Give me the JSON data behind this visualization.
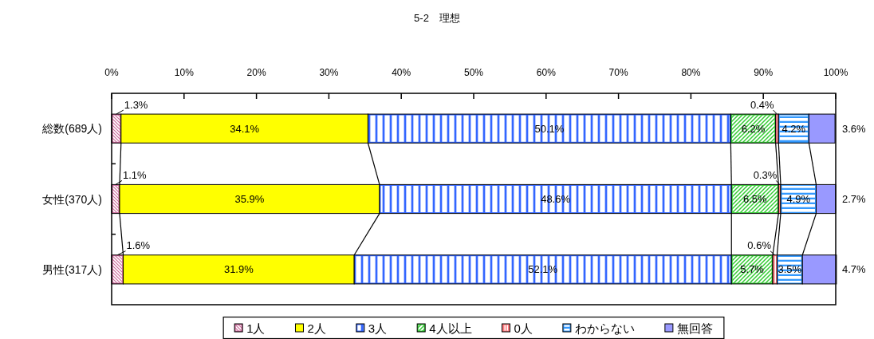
{
  "chart_data": {
    "type": "bar",
    "orientation": "horizontal",
    "stacked": true,
    "title": "5-2　理想",
    "categories": [
      "総数(689人)",
      "女性(370人)",
      "男性(317人)"
    ],
    "xlim": [
      0,
      100
    ],
    "xticks": [
      {
        "value": 0,
        "label": "0%"
      },
      {
        "value": 10,
        "label": "10%"
      },
      {
        "value": 20,
        "label": "20%"
      },
      {
        "value": 30,
        "label": "30%"
      },
      {
        "value": 40,
        "label": "40%"
      },
      {
        "value": 50,
        "label": "50%"
      },
      {
        "value": 60,
        "label": "60%"
      },
      {
        "value": 70,
        "label": "70%"
      },
      {
        "value": 80,
        "label": "80%"
      },
      {
        "value": 90,
        "label": "90%"
      },
      {
        "value": 100,
        "label": "100%"
      }
    ],
    "legend": "bottom",
    "series": [
      {
        "name": "1人",
        "color": "#cc6699",
        "values": [
          1.3,
          1.1,
          1.6
        ],
        "value_labels": [
          "1.3%",
          "1.1%",
          "1.6%"
        ]
      },
      {
        "name": "2人",
        "color": "#ffff00",
        "values": [
          34.1,
          35.9,
          31.9
        ],
        "value_labels": [
          "34.1%",
          "35.9%",
          "31.9%"
        ]
      },
      {
        "name": "3人",
        "color": "#3366ff",
        "values": [
          50.1,
          48.6,
          52.1
        ],
        "value_labels": [
          "50.1%",
          "48.6%",
          "52.1%"
        ]
      },
      {
        "name": "4人以上",
        "color": "#33cc33",
        "values": [
          6.2,
          6.5,
          5.7
        ],
        "value_labels": [
          "6.2%",
          "6.5%",
          "5.7%"
        ]
      },
      {
        "name": "0人",
        "color": "#ff7c80",
        "values": [
          0.4,
          0.3,
          0.6
        ],
        "value_labels": [
          "0.4%",
          "0.3%",
          "0.6%"
        ]
      },
      {
        "name": "わからない",
        "color": "#3399ff",
        "values": [
          4.2,
          4.9,
          3.5
        ],
        "value_labels": [
          "4.2%",
          "4.9%",
          "3.5%"
        ]
      },
      {
        "name": "無回答",
        "color": "#9999ff",
        "values": [
          3.6,
          2.7,
          4.7
        ],
        "value_labels": [
          "3.6%",
          "2.7%",
          "4.7%"
        ]
      }
    ]
  }
}
